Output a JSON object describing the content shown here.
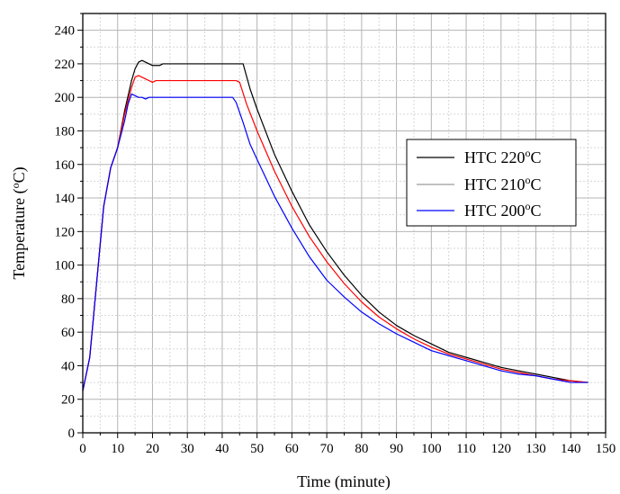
{
  "chart_data": {
    "type": "line",
    "title": "",
    "xlabel": "Time (minute)",
    "ylabel": "Temperature (°C)",
    "ylabel_parts": {
      "before": "Temperature (",
      "superscript": "o",
      "after": "C)"
    },
    "xlim": [
      0,
      150
    ],
    "ylim": [
      0,
      250
    ],
    "x_ticks": [
      0,
      10,
      20,
      30,
      40,
      50,
      60,
      70,
      80,
      90,
      100,
      110,
      120,
      130,
      140,
      150
    ],
    "y_ticks": [
      0,
      20,
      40,
      60,
      80,
      100,
      120,
      140,
      160,
      180,
      200,
      220,
      240
    ],
    "grid": true,
    "legend_position": "right, upper-middle",
    "series": [
      {
        "name": "HTC 220°C",
        "name_parts": {
          "before": "HTC 220",
          "superscript": "o",
          "after": "C"
        },
        "color": "#000000",
        "points": [
          [
            0,
            25
          ],
          [
            2,
            45
          ],
          [
            4,
            90
          ],
          [
            6,
            135
          ],
          [
            8,
            158
          ],
          [
            10,
            170
          ],
          [
            12,
            192
          ],
          [
            14,
            210
          ],
          [
            15,
            217
          ],
          [
            16,
            221
          ],
          [
            17,
            222
          ],
          [
            18,
            221
          ],
          [
            19,
            220
          ],
          [
            20,
            219
          ],
          [
            21,
            219
          ],
          [
            22,
            219
          ],
          [
            23,
            220
          ],
          [
            25,
            220
          ],
          [
            30,
            220
          ],
          [
            35,
            220
          ],
          [
            40,
            220
          ],
          [
            45,
            220
          ],
          [
            46,
            220
          ],
          [
            48,
            205
          ],
          [
            50,
            193
          ],
          [
            55,
            166
          ],
          [
            60,
            144
          ],
          [
            65,
            124
          ],
          [
            70,
            108
          ],
          [
            75,
            94
          ],
          [
            80,
            82
          ],
          [
            85,
            72
          ],
          [
            90,
            64
          ],
          [
            95,
            58
          ],
          [
            100,
            53
          ],
          [
            105,
            48
          ],
          [
            110,
            45
          ],
          [
            115,
            42
          ],
          [
            120,
            39
          ],
          [
            125,
            37
          ],
          [
            130,
            35
          ],
          [
            135,
            33
          ],
          [
            140,
            31
          ],
          [
            145,
            30
          ]
        ]
      },
      {
        "name": "HTC 210°C",
        "name_parts": {
          "before": "HTC 210",
          "superscript": "o",
          "after": "C"
        },
        "color": "#ff0000",
        "points": [
          [
            0,
            25
          ],
          [
            2,
            45
          ],
          [
            4,
            90
          ],
          [
            6,
            135
          ],
          [
            8,
            158
          ],
          [
            10,
            170
          ],
          [
            12,
            190
          ],
          [
            14,
            206
          ],
          [
            15,
            212
          ],
          [
            16,
            213
          ],
          [
            17,
            212
          ],
          [
            18,
            211
          ],
          [
            19,
            210
          ],
          [
            20,
            209
          ],
          [
            21,
            210
          ],
          [
            25,
            210
          ],
          [
            30,
            210
          ],
          [
            35,
            210
          ],
          [
            40,
            210
          ],
          [
            44,
            210
          ],
          [
            45,
            209
          ],
          [
            47,
            196
          ],
          [
            50,
            180
          ],
          [
            55,
            156
          ],
          [
            60,
            135
          ],
          [
            65,
            117
          ],
          [
            70,
            102
          ],
          [
            75,
            89
          ],
          [
            80,
            78
          ],
          [
            85,
            69
          ],
          [
            90,
            62
          ],
          [
            95,
            56
          ],
          [
            100,
            51
          ],
          [
            105,
            47
          ],
          [
            110,
            44
          ],
          [
            115,
            41
          ],
          [
            120,
            38
          ],
          [
            125,
            36
          ],
          [
            130,
            34
          ],
          [
            135,
            32
          ],
          [
            140,
            31
          ],
          [
            145,
            30
          ]
        ]
      },
      {
        "name": "HTC 200°C",
        "name_parts": {
          "before": "HTC 200",
          "superscript": "o",
          "after": "C"
        },
        "color": "#0000ff",
        "points": [
          [
            0,
            25
          ],
          [
            2,
            45
          ],
          [
            4,
            90
          ],
          [
            6,
            135
          ],
          [
            8,
            158
          ],
          [
            10,
            170
          ],
          [
            12,
            186
          ],
          [
            13,
            196
          ],
          [
            14,
            202
          ],
          [
            15,
            201
          ],
          [
            16,
            200
          ],
          [
            17,
            200
          ],
          [
            18,
            199
          ],
          [
            19,
            200
          ],
          [
            20,
            200
          ],
          [
            25,
            200
          ],
          [
            30,
            200
          ],
          [
            35,
            200
          ],
          [
            40,
            200
          ],
          [
            43,
            200
          ],
          [
            44,
            197
          ],
          [
            46,
            185
          ],
          [
            48,
            172
          ],
          [
            50,
            163
          ],
          [
            55,
            141
          ],
          [
            60,
            122
          ],
          [
            65,
            105
          ],
          [
            70,
            91
          ],
          [
            75,
            81
          ],
          [
            80,
            72
          ],
          [
            85,
            65
          ],
          [
            90,
            59
          ],
          [
            95,
            54
          ],
          [
            100,
            49
          ],
          [
            105,
            46
          ],
          [
            110,
            43
          ],
          [
            115,
            40
          ],
          [
            120,
            37
          ],
          [
            125,
            35
          ],
          [
            130,
            34
          ],
          [
            135,
            32
          ],
          [
            140,
            30
          ],
          [
            145,
            30
          ]
        ]
      }
    ]
  }
}
